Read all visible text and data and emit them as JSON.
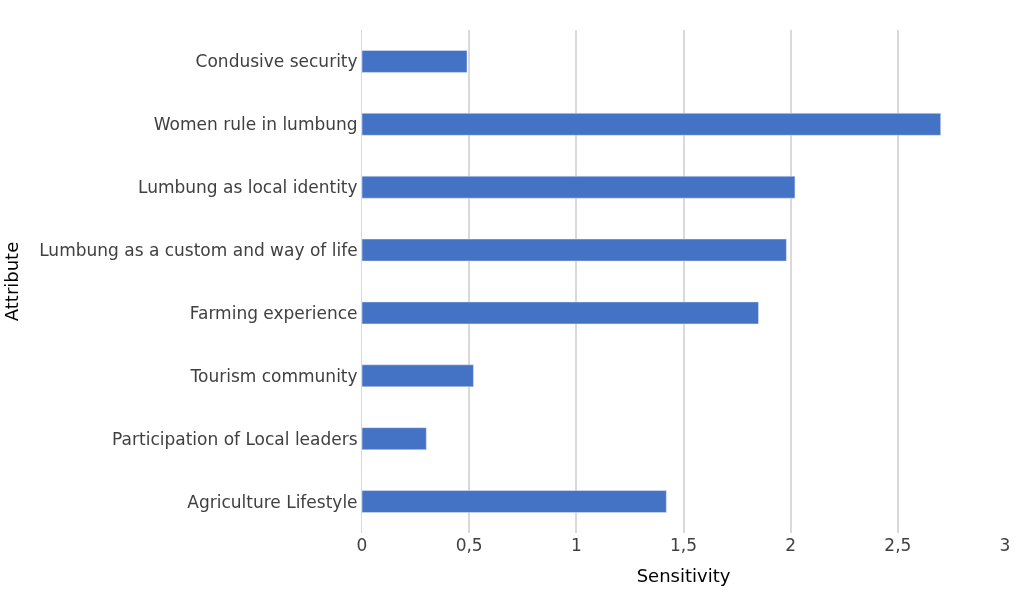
{
  "chart_data": {
    "type": "bar",
    "orientation": "horizontal",
    "xlabel": "Sensitivity",
    "ylabel": "Attribute",
    "categories": [
      "Condusive security",
      "Women rule in lumbung",
      "Lumbung as local identity",
      "Lumbung as a custom and way of life",
      "Farming experience",
      "Tourism community",
      "Participation of Local leaders",
      "Agriculture Lifestyle"
    ],
    "values": [
      0.49,
      2.7,
      2.02,
      1.98,
      1.85,
      0.52,
      0.3,
      1.42
    ],
    "color": "#4472c4",
    "xlim": [
      0,
      3
    ],
    "xticks": [
      0,
      {
        "value": 0.5,
        "label": "0,5"
      },
      1,
      {
        "value": 1.5,
        "label": "1,5"
      },
      2,
      {
        "value": 2.5,
        "label": "2,5"
      },
      3
    ],
    "grid": "x",
    "legend": false
  }
}
